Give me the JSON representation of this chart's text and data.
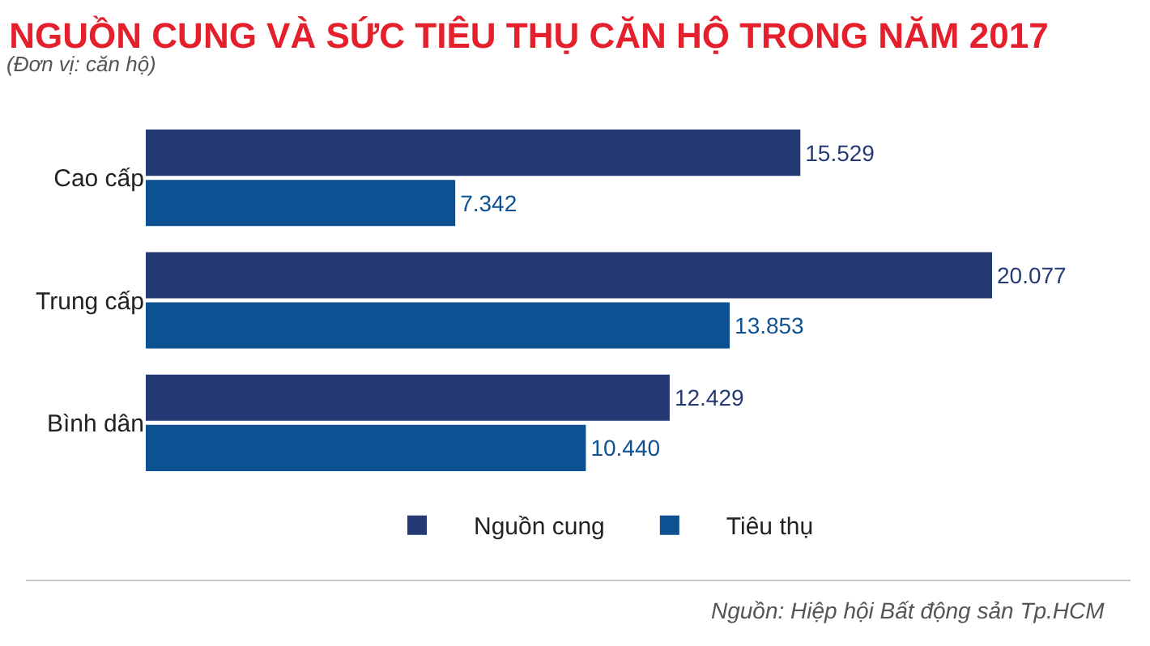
{
  "chart_data": {
    "type": "bar",
    "orientation": "horizontal",
    "title": "NGUỒN CUNG VÀ SỨC TIÊU THỤ CĂN HỘ TRONG NĂM 2017",
    "subtitle": "(Đơn vị: căn hộ)",
    "categories": [
      "Cao cấp",
      "Trung cấp",
      "Bình dân"
    ],
    "series": [
      {
        "name": "Nguồn cung",
        "color": "#253a74",
        "values": [
          15529,
          20077,
          12429
        ],
        "value_labels": [
          "15.529",
          "20.077",
          "12.429"
        ]
      },
      {
        "name": "Tiêu thụ",
        "color": "#0d5192",
        "values": [
          7342,
          13853,
          10440
        ],
        "value_labels": [
          "7.342",
          "13.853",
          "10.440"
        ]
      }
    ],
    "legend": "bottom",
    "grid": false,
    "tick_labels": "y",
    "annotations": [
      "Nguồn: Hiệp hội Bất động sản Tp.HCM"
    ]
  }
}
